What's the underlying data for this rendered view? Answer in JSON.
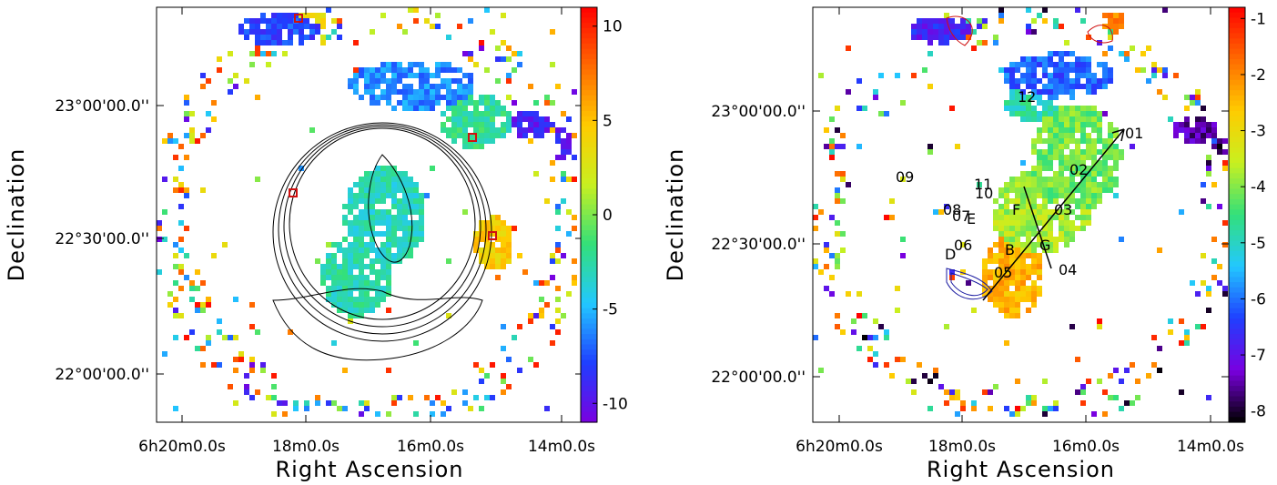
{
  "chart_data": [
    {
      "type": "heatmap",
      "title": "",
      "xlabel": "Right Ascension",
      "ylabel": "Declination",
      "x_tick_labels": [
        "6h20m0.0s",
        "18m0.0s",
        "16m0.0s",
        "14m0.0s"
      ],
      "y_tick_labels": [
        "23°00'00.0''",
        "22°30'00.0''",
        "22°00'00.0''"
      ],
      "colorbar": {
        "range": [
          -11,
          11
        ],
        "ticks": [
          "10",
          "5",
          "0",
          "-5",
          "-10"
        ],
        "colors": [
          "#7a00e0",
          "#1f3fff",
          "#22c8ff",
          "#33e07a",
          "#c8f020",
          "#ffcc00",
          "#ff6a00",
          "#ff0000"
        ]
      },
      "contours": "black",
      "markers": "red squares"
    },
    {
      "type": "heatmap",
      "title": "",
      "xlabel": "Right Ascension",
      "ylabel": "Declination",
      "x_tick_labels": [
        "6h20m0.0s",
        "18m0.0s",
        "16m0.0s",
        "14m0.0s"
      ],
      "y_tick_labels": [
        "23°00'00.0''",
        "22°30'00.0''",
        "22°00'00.0''"
      ],
      "colorbar": {
        "range": [
          -8.2,
          -0.8
        ],
        "ticks": [
          "-1",
          "-2",
          "-3",
          "-4",
          "-5",
          "-6",
          "-7",
          "-8"
        ],
        "colors": [
          "#000000",
          "#7a00e0",
          "#1f3fff",
          "#22c8ff",
          "#33e07a",
          "#c8f020",
          "#ffcc00",
          "#ff6a00",
          "#ff0000"
        ]
      },
      "region_labels": [
        "01",
        "02",
        "03",
        "04",
        "05",
        "06",
        "07",
        "08",
        "09",
        "10",
        "11",
        "12",
        "B",
        "D",
        "E",
        "F",
        "G"
      ],
      "contours": "blue and red"
    }
  ]
}
